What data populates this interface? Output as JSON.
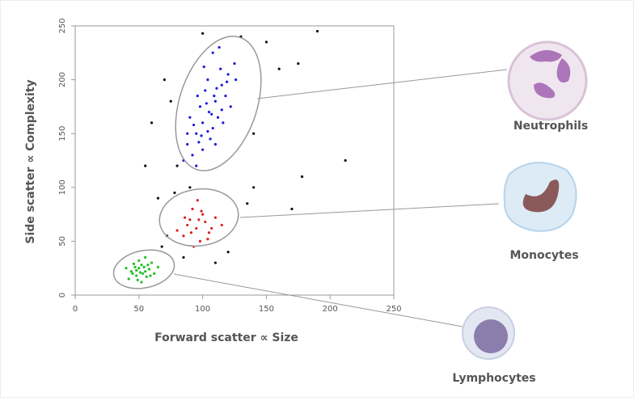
{
  "chart_data": {
    "type": "scatter",
    "xlabel": "Forward scatter ∝ Size",
    "ylabel": "Side scatter ∝ Complexity",
    "xlim": [
      0,
      250
    ],
    "ylim": [
      0,
      250
    ],
    "xticks": [
      0,
      50,
      100,
      150,
      200,
      250
    ],
    "yticks": [
      0,
      50,
      100,
      150,
      200,
      250
    ],
    "series": [
      {
        "name": "Neutrophils",
        "color": "#1a1adc",
        "x": [
          88,
          95,
          100,
          105,
          110,
          115,
          120,
          98,
          108,
          112,
          102,
          92,
          118,
          125,
          85,
          106,
          96,
          114,
          104,
          110,
          100,
          122,
          90,
          116,
          108,
          95,
          103,
          111,
          99,
          107,
          119,
          93,
          126,
          113,
          101,
          97,
          109,
          115,
          104,
          88
        ],
        "values": [
          140,
          150,
          160,
          170,
          180,
          195,
          205,
          175,
          155,
          165,
          190,
          130,
          185,
          215,
          125,
          145,
          185,
          210,
          200,
          140,
          135,
          175,
          165,
          160,
          225,
          120,
          178,
          192,
          148,
          168,
          198,
          158,
          200,
          230,
          212,
          142,
          185,
          172,
          152,
          150
        ]
      },
      {
        "name": "Monocytes",
        "color": "#e02020",
        "x": [
          85,
          90,
          95,
          100,
          105,
          92,
          98,
          88,
          102,
          110,
          80,
          96,
          93,
          107,
          99,
          86,
          104,
          115,
          91,
          97
        ],
        "values": [
          55,
          70,
          62,
          75,
          58,
          80,
          50,
          65,
          68,
          72,
          60,
          88,
          45,
          62,
          78,
          72,
          52,
          65,
          58,
          70
        ]
      },
      {
        "name": "Lymphocytes",
        "color": "#22c022",
        "x": [
          45,
          50,
          55,
          48,
          52,
          58,
          42,
          60,
          53,
          47,
          56,
          50,
          44,
          62,
          54,
          49,
          57,
          51,
          46,
          59,
          40,
          55,
          65,
          52,
          48
        ],
        "values": [
          20,
          25,
          22,
          18,
          28,
          24,
          15,
          30,
          20,
          26,
          17,
          32,
          22,
          20,
          26,
          14,
          28,
          21,
          29,
          18,
          25,
          35,
          26,
          12,
          23
        ]
      },
      {
        "color": "#111111",
        "x": [
          70,
          75,
          60,
          80,
          140,
          160,
          175,
          190,
          212,
          78,
          135,
          170,
          65,
          120,
          85,
          110,
          72,
          150,
          130,
          55,
          90,
          140,
          178,
          100,
          68
        ],
        "values": [
          200,
          180,
          160,
          120,
          100,
          210,
          215,
          245,
          125,
          95,
          85,
          80,
          90,
          40,
          35,
          30,
          55,
          235,
          240,
          120,
          100,
          150,
          110,
          243,
          45
        ]
      }
    ]
  }
}
